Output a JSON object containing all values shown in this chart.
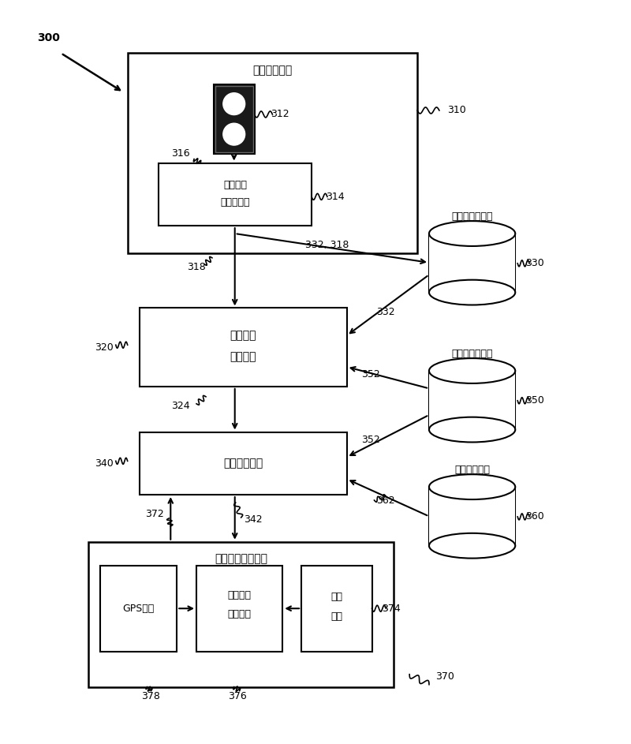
{
  "bg_color": "#ffffff",
  "figure_size": [
    8.0,
    9.43
  ],
  "dpi": 100,
  "label_300": "300",
  "label_310": "310",
  "label_312": "312",
  "label_314": "314",
  "label_316": "316",
  "label_318": "318",
  "label_320": "320",
  "label_324": "324",
  "label_330": "330",
  "label_332": "332",
  "label_332_318": "332, 318",
  "label_340": "340",
  "label_342": "342",
  "label_350": "350",
  "label_352a": "352",
  "label_352b": "352",
  "label_360": "360",
  "label_362": "362",
  "label_370": "370",
  "label_372": "372",
  "label_374": "374",
  "label_376": "376",
  "label_378": "378",
  "box310_title": "实时交通系统",
  "box314_line1": "实时交通",
  "box314_line2": "数据收集器",
  "box320_line1": "交通拥塞",
  "box320_line2": "预测系统",
  "box330_title": "历史交通数据库",
  "box340_title": "路线处理系统",
  "box350_title": "道路网络数据库",
  "box360_title": "过路费数据库",
  "box370_title": "上下班者接口设备",
  "box_gps": "GPS单元",
  "box_map_line1": "地图引擎",
  "box_map_line2": "显现系统",
  "box_input_line1": "输入",
  "box_input_line2": "设备"
}
